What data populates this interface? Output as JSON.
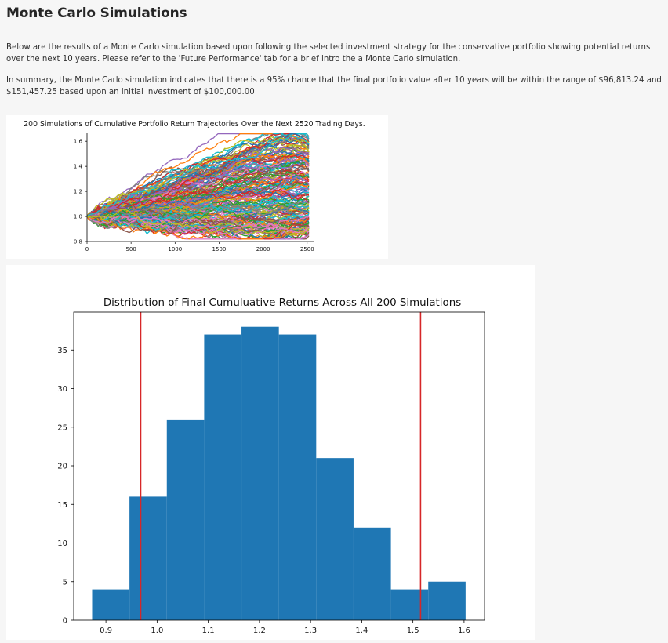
{
  "page": {
    "title": "Monte Carlo Simulations",
    "paragraph1": "Below are the results of a Monte Carlo simulation based upon following the selected investment strategy for the conservative portfolio showing potential returns over the next 10 years. Please refer to the 'Future Performance' tab for a brief intro the a Monte Carlo simulation.",
    "paragraph2": "In summary, the Monte Carlo simulation indicates that there is a 95% chance that the final portfolio value after 10 years will be within the range of $96,813.24 and $151,457.25 based upon an initial investment of $100,000.00"
  },
  "colors": {
    "bar": "#1f77b4",
    "vline": "#d62728",
    "palette": [
      "#1f77b4",
      "#ff7f0e",
      "#2ca02c",
      "#d62728",
      "#9467bd",
      "#8c564b",
      "#e377c2",
      "#7f7f7f",
      "#bcbd22",
      "#17becf"
    ]
  },
  "chart_data": [
    {
      "type": "line",
      "title": "200 Simulations of Cumulative Portfolio Return Trajectories Over the Next 2520 Trading Days.",
      "n_series": 200,
      "n_steps": 2520,
      "xlim": [
        0,
        2520
      ],
      "ylim": [
        0.8,
        1.67
      ],
      "xticks": [
        0,
        500,
        1000,
        1500,
        2000,
        2500
      ],
      "yticks": [
        0.8,
        1.0,
        1.2,
        1.4,
        1.6
      ],
      "xtick_labels": [
        "0",
        "500",
        "1000",
        "1500",
        "2000",
        "2500"
      ],
      "ytick_labels": [
        "0.8",
        "1.0",
        "1.2",
        "1.4",
        "1.6"
      ],
      "start_value": 1.0,
      "final_range": [
        0.87,
        1.61
      ]
    },
    {
      "type": "bar",
      "title": "Distribution of Final Cumuluative Returns Across All 200 Simulations",
      "bin_edges": [
        0.873,
        0.946,
        1.019,
        1.092,
        1.165,
        1.238,
        1.311,
        1.384,
        1.457,
        1.53,
        1.603
      ],
      "counts": [
        4,
        16,
        26,
        37,
        38,
        37,
        21,
        12,
        4,
        5
      ],
      "xlim": [
        0.837,
        1.64
      ],
      "ylim": [
        0,
        39.9
      ],
      "xticks": [
        0.9,
        1.0,
        1.1,
        1.2,
        1.3,
        1.4,
        1.5,
        1.6
      ],
      "xtick_labels": [
        "0.9",
        "1.0",
        "1.1",
        "1.2",
        "1.3",
        "1.4",
        "1.5",
        "1.6"
      ],
      "yticks": [
        0,
        5,
        10,
        15,
        20,
        25,
        30,
        35
      ],
      "ytick_labels": [
        "0",
        "5",
        "10",
        "15",
        "20",
        "25",
        "30",
        "35"
      ],
      "vlines": [
        0.968,
        1.515
      ]
    }
  ]
}
